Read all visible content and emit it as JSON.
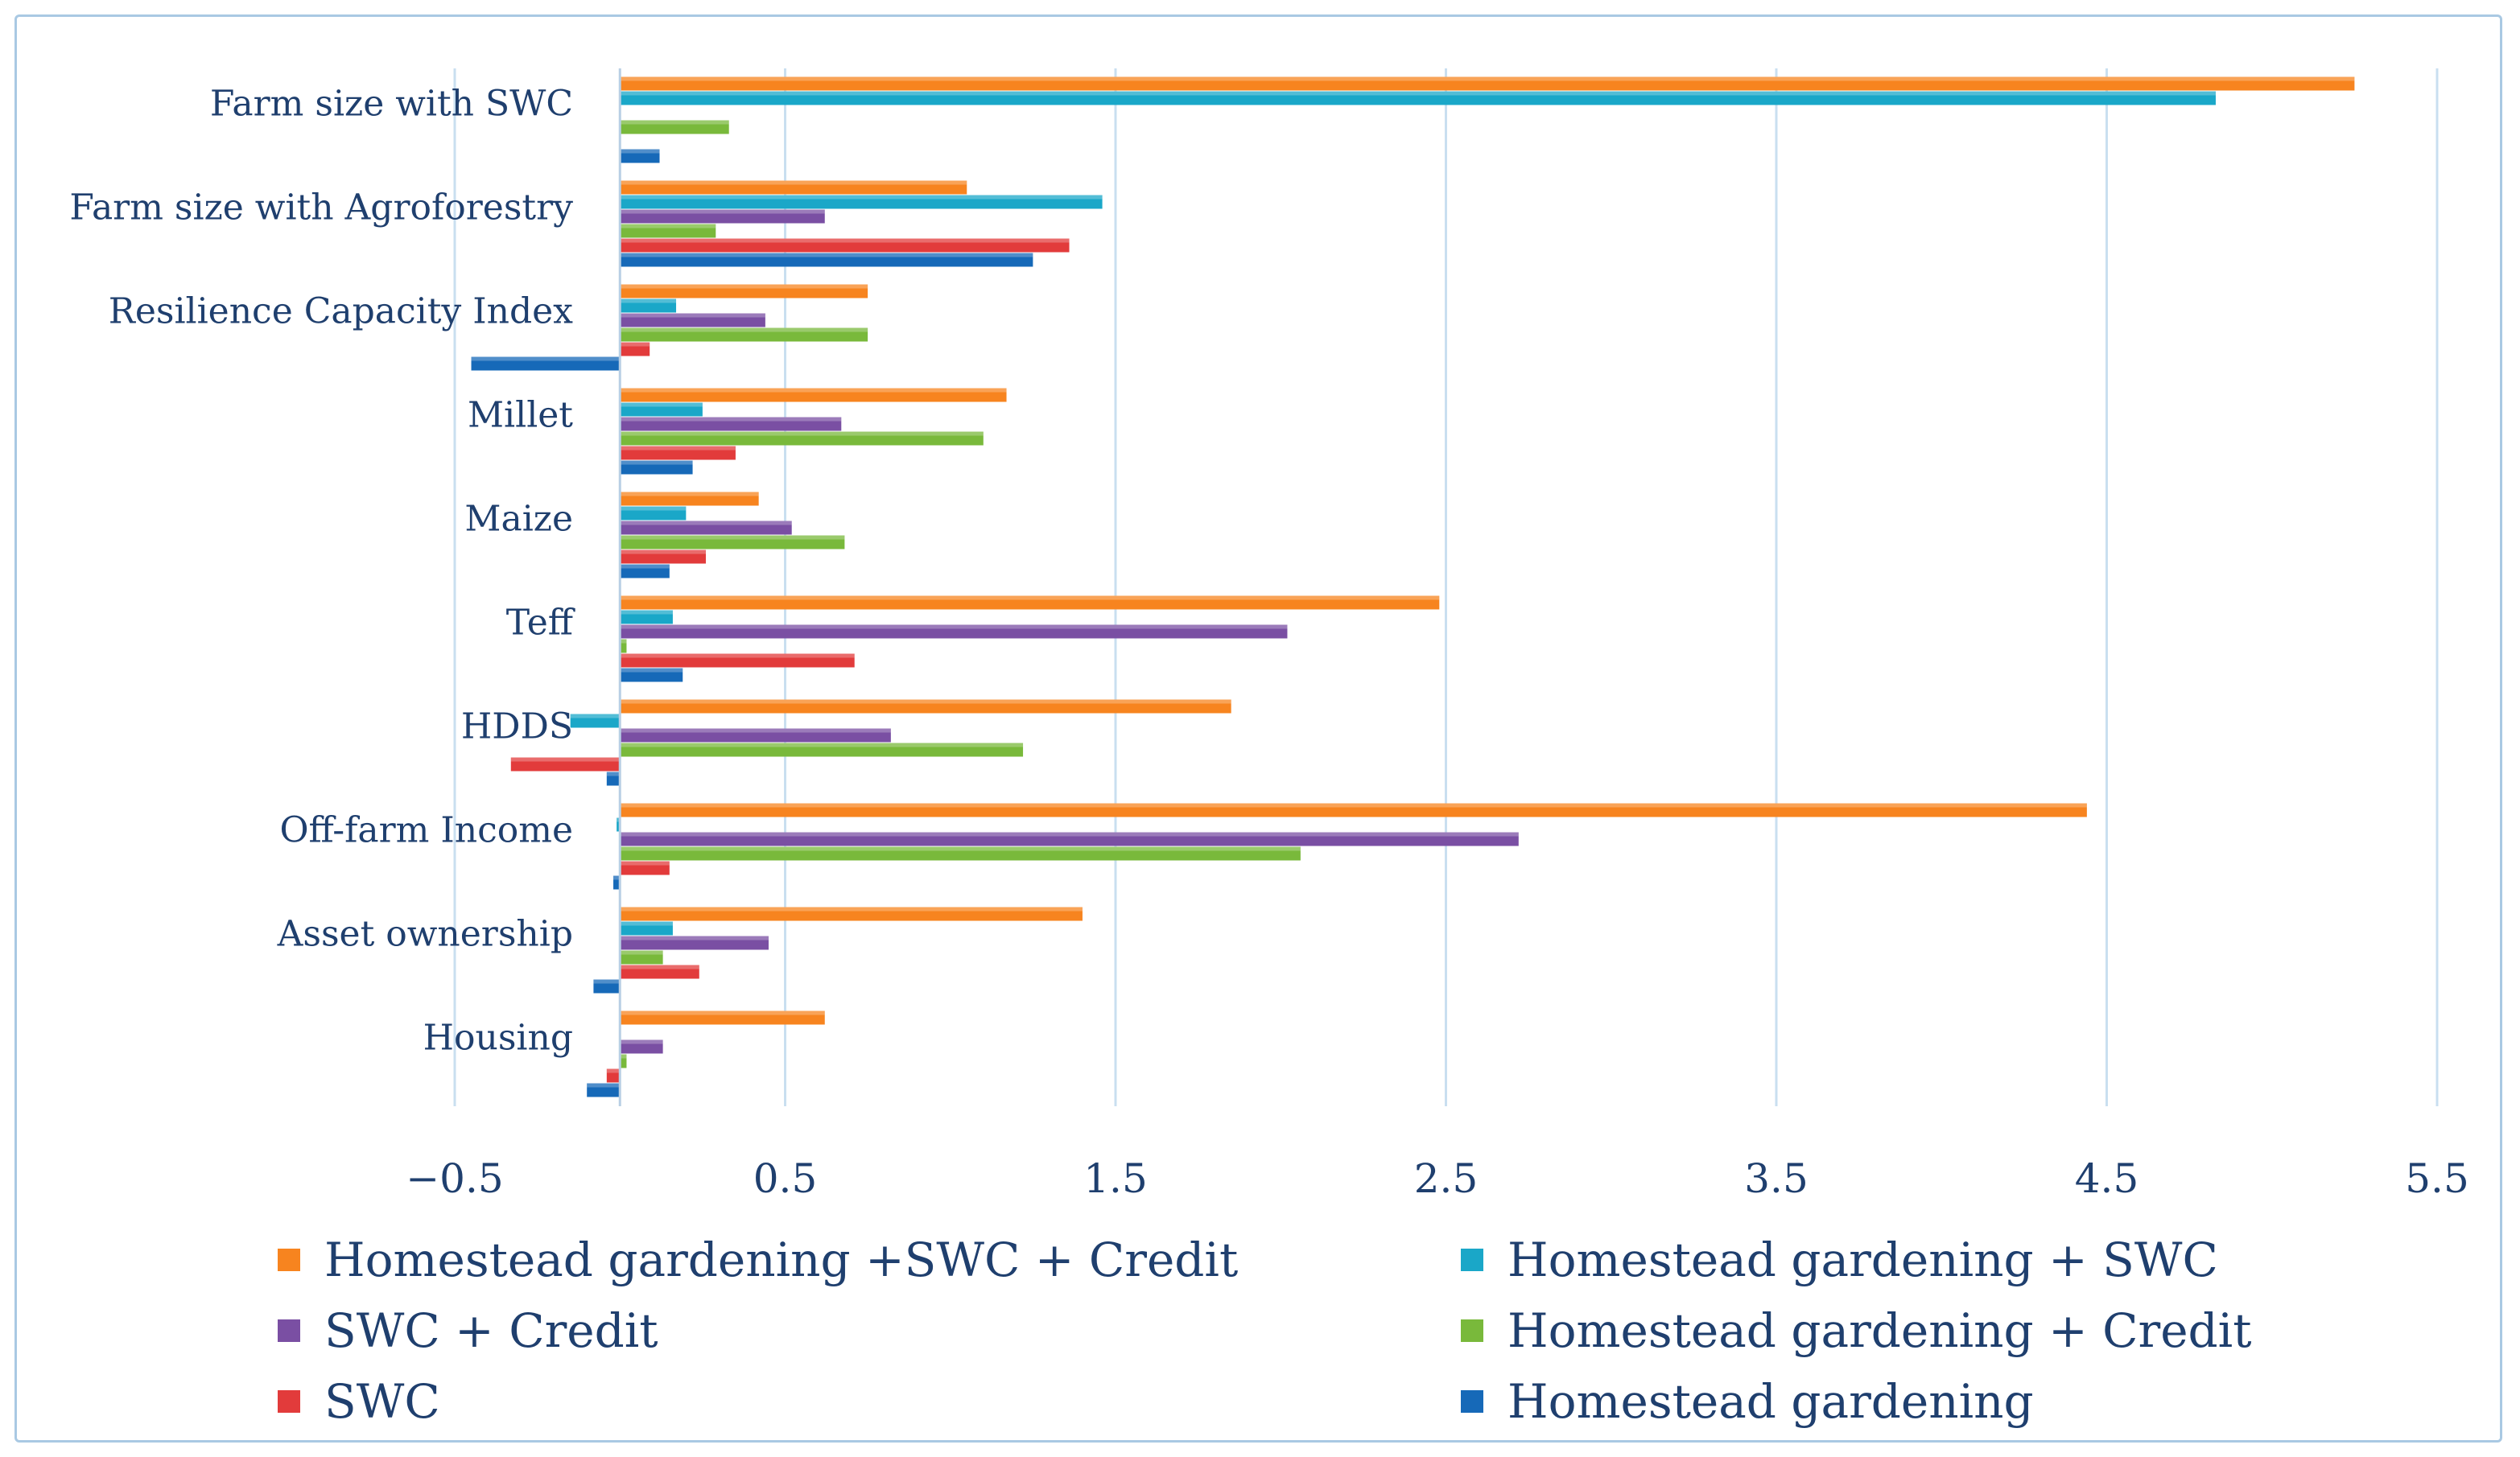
{
  "chart_data": {
    "type": "bar",
    "orientation": "horizontal",
    "categories": [
      "Farm size with SWC",
      "Farm size with Agroforestry",
      "Resilience Capacity Index",
      "Millet",
      "Maize",
      "Teff",
      "HDDS",
      "Off-farm Income",
      "Asset ownership",
      "Housing"
    ],
    "series": [
      {
        "name": "Homestead gardening +SWC + Credit",
        "color": "#f7841f",
        "values": [
          5.25,
          1.05,
          0.75,
          1.17,
          0.42,
          2.48,
          1.85,
          4.44,
          1.4,
          0.62
        ]
      },
      {
        "name": "Homestead gardening + SWC",
        "color": "#1aa7c8",
        "values": [
          4.83,
          1.46,
          0.17,
          0.25,
          0.2,
          0.16,
          -0.15,
          -0.01,
          0.16,
          0.0
        ]
      },
      {
        "name": "SWC + Credit",
        "color": "#7a4fa3",
        "values": [
          0.0,
          0.62,
          0.44,
          0.67,
          0.52,
          2.02,
          0.82,
          2.72,
          0.45,
          0.13
        ]
      },
      {
        "name": "Homestead gardening + Credit",
        "color": "#79b93b",
        "values": [
          0.33,
          0.29,
          0.75,
          1.1,
          0.68,
          0.02,
          1.22,
          2.06,
          0.13,
          0.02
        ]
      },
      {
        "name": "SWC",
        "color": "#e23b3b",
        "values": [
          0.0,
          1.36,
          0.09,
          0.35,
          0.26,
          0.71,
          -0.33,
          0.15,
          0.24,
          -0.04
        ]
      },
      {
        "name": "Homestead gardening",
        "color": "#1669b8",
        "values": [
          0.12,
          1.25,
          -0.45,
          0.22,
          0.15,
          0.19,
          -0.04,
          -0.02,
          -0.08,
          -0.1
        ]
      }
    ],
    "xlim": [
      -0.5,
      5.5
    ],
    "xticks": [
      -0.5,
      0.5,
      1.5,
      2.5,
      3.5,
      4.5,
      5.5
    ],
    "xtick_labels": [
      "−0.5",
      "0.5",
      "1.5",
      "2.5",
      "3.5",
      "4.5",
      "5.5"
    ],
    "title": "",
    "xlabel": "",
    "ylabel": "",
    "grid": "vertical",
    "legend": "bottom"
  }
}
